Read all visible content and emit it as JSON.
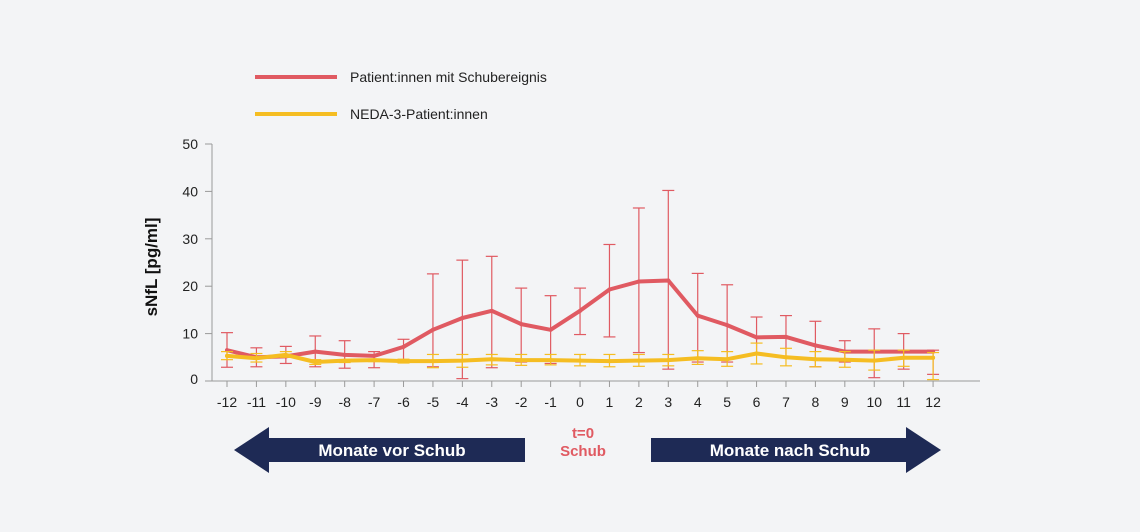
{
  "chart_data": {
    "type": "line",
    "ylabel": "sNfL [pg/ml]",
    "xlabel": "",
    "ylim": [
      0,
      50
    ],
    "yticks": [
      "0",
      "10",
      "20",
      "30",
      "40",
      "50"
    ],
    "categories": [
      "-12",
      "-11",
      "-10",
      "-9",
      "-8",
      "-7",
      "-6",
      "-5",
      "-4",
      "-3",
      "-2",
      "-1",
      "0",
      "1",
      "2",
      "3",
      "4",
      "5",
      "6",
      "7",
      "8",
      "9",
      "10",
      "11",
      "12"
    ],
    "highlight_category": "0",
    "series": [
      {
        "name": "Patient:innen mit Schubereignis",
        "color": "#e05a62",
        "values": [
          6.5,
          5.0,
          5.2,
          6.2,
          5.5,
          5.3,
          7.2,
          10.8,
          13.3,
          14.8,
          12.0,
          10.8,
          14.8,
          19.3,
          21.0,
          21.2,
          13.8,
          11.8,
          9.2,
          9.3,
          7.5,
          6.2,
          6.2,
          6.2,
          6.2
        ],
        "err_high": [
          10.2,
          7.0,
          7.3,
          9.5,
          8.5,
          6.2,
          8.8,
          22.6,
          25.5,
          26.3,
          19.6,
          18.0,
          19.6,
          28.8,
          36.5,
          40.2,
          22.7,
          20.3,
          13.5,
          13.8,
          12.6,
          8.5,
          11.0,
          10.0,
          6.5
        ],
        "err_low": [
          2.9,
          3.0,
          3.7,
          3.0,
          2.7,
          2.8,
          4.0,
          3.0,
          0.5,
          2.8,
          4.0,
          3.7,
          9.8,
          9.3,
          6.0,
          2.5,
          4.0,
          4.0,
          5.6,
          5.0,
          3.0,
          4.0,
          0.7,
          2.5,
          1.4
        ]
      },
      {
        "name": "NEDA-3-Patient:innen",
        "color": "#f5bd22",
        "values": [
          5.3,
          4.8,
          5.5,
          4.0,
          4.3,
          4.4,
          4.2,
          4.2,
          4.3,
          4.6,
          4.4,
          4.4,
          4.3,
          4.2,
          4.3,
          4.4,
          4.8,
          4.6,
          5.8,
          5.0,
          4.6,
          4.5,
          4.3,
          4.9,
          4.9
        ],
        "err_high": [
          6.2,
          5.8,
          6.2,
          4.5,
          4.5,
          4.6,
          4.6,
          5.6,
          5.6,
          5.6,
          5.6,
          5.6,
          5.6,
          5.6,
          5.6,
          5.6,
          6.4,
          6.2,
          8.0,
          6.9,
          6.2,
          6.2,
          6.5,
          6.5,
          6.0
        ],
        "err_low": [
          4.5,
          4.0,
          5.0,
          3.5,
          3.9,
          4.1,
          3.8,
          2.8,
          2.9,
          3.4,
          3.3,
          3.4,
          3.2,
          3.0,
          3.1,
          3.2,
          3.5,
          3.1,
          3.6,
          3.2,
          3.0,
          2.9,
          2.3,
          3.1,
          0.3
        ]
      }
    ]
  },
  "legend": {
    "item1": "Patient:innen mit Schubereignis",
    "item2": "NEDA-3-Patient:innen"
  },
  "arrows": {
    "left_label": "Monate vor Schub",
    "right_label": "Monate nach Schub",
    "color": "#1e2a55"
  },
  "t0": {
    "line1": "t=0",
    "line2": "Schub",
    "color": "#e05a62"
  }
}
